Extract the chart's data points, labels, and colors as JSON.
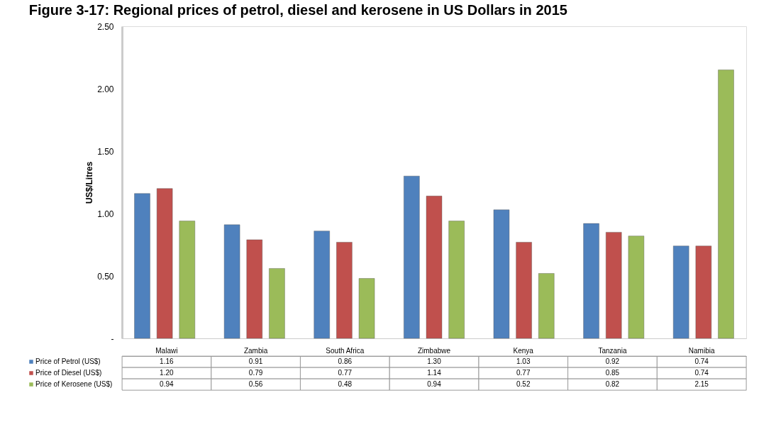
{
  "chart_data": {
    "type": "bar",
    "title": "Figure 3-17: Regional prices of petrol, diesel and kerosene in US Dollars in 2015",
    "ylabel": "US$/Litres",
    "categories": [
      "Malawi",
      "Zambia",
      "South Africa",
      "Zimbabwe",
      "Kenya",
      "Tanzania",
      "Namibia"
    ],
    "series": [
      {
        "name": "Price of Petrol (US$)",
        "color": "#4f81bd",
        "values": [
          1.16,
          0.91,
          0.86,
          1.3,
          1.03,
          0.92,
          0.74
        ],
        "value_labels": [
          "1.16",
          "0.91",
          "0.86",
          "1.30",
          "1.03",
          "0.92",
          "0.74"
        ]
      },
      {
        "name": "Price of Diesel (US$)",
        "color": "#c0504d",
        "values": [
          1.2,
          0.79,
          0.77,
          1.14,
          0.77,
          0.85,
          0.74
        ],
        "value_labels": [
          "1.20",
          "0.79",
          "0.77",
          "1.14",
          "0.77",
          "0.85",
          "0.74"
        ]
      },
      {
        "name": "Price of Kerosene (US$)",
        "color": "#9bbb59",
        "values": [
          0.94,
          0.56,
          0.48,
          0.94,
          0.52,
          0.82,
          2.15
        ],
        "value_labels": [
          "0.94",
          "0.56",
          "0.48",
          "0.94",
          "0.52",
          "0.82",
          "2.15"
        ]
      }
    ],
    "ylim": [
      0,
      2.5
    ],
    "yticks": [
      {
        "value": 0,
        "label": "-"
      },
      {
        "value": 0.5,
        "label": "0.50"
      },
      {
        "value": 1,
        "label": "1.00"
      },
      {
        "value": 1.5,
        "label": "1.50"
      },
      {
        "value": 2,
        "label": "2.00"
      },
      {
        "value": 2.5,
        "label": "2.50"
      }
    ],
    "grid": false,
    "legend": "bottom"
  }
}
